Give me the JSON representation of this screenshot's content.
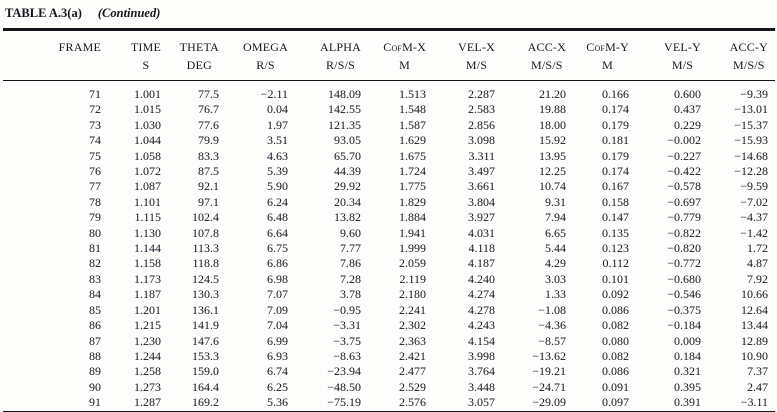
{
  "title": {
    "label": "TABLE A.3(a)",
    "continued": "(Continued)"
  },
  "columns": [
    {
      "key": "frame",
      "name": "FRAME",
      "unit": ""
    },
    {
      "key": "time",
      "name": "TIME",
      "unit": "S"
    },
    {
      "key": "theta",
      "name": "THETA",
      "unit": "DEG"
    },
    {
      "key": "omega",
      "name": "OMEGA",
      "unit": "R/S"
    },
    {
      "key": "alpha",
      "name": "ALPHA",
      "unit": "R/S/S"
    },
    {
      "key": "cofm_x",
      "name": "CofM-X",
      "unit": "M"
    },
    {
      "key": "vel_x",
      "name": "VEL-X",
      "unit": "M/S"
    },
    {
      "key": "acc_x",
      "name": "ACC-X",
      "unit": "M/S/S"
    },
    {
      "key": "cofm_y",
      "name": "CofM-Y",
      "unit": "M"
    },
    {
      "key": "vel_y",
      "name": "VEL-Y",
      "unit": "M/S"
    },
    {
      "key": "acc_y",
      "name": "ACC-Y",
      "unit": "M/S/S"
    }
  ],
  "rows": [
    [
      "71",
      "1.001",
      "77.5",
      "−2.11",
      "148.09",
      "1.513",
      "2.287",
      "21.20",
      "0.166",
      "0.600",
      "−9.39"
    ],
    [
      "72",
      "1.015",
      "76.7",
      "0.04",
      "142.55",
      "1.548",
      "2.583",
      "19.88",
      "0.174",
      "0.437",
      "−13.01"
    ],
    [
      "73",
      "1.030",
      "77.6",
      "1.97",
      "121.35",
      "1.587",
      "2.856",
      "18.00",
      "0.179",
      "0.229",
      "−15.37"
    ],
    [
      "74",
      "1.044",
      "79.9",
      "3.51",
      "93.05",
      "1.629",
      "3.098",
      "15.92",
      "0.181",
      "−0.002",
      "−15.93"
    ],
    [
      "75",
      "1.058",
      "83.3",
      "4.63",
      "65.70",
      "1.675",
      "3.311",
      "13.95",
      "0.179",
      "−0.227",
      "−14.68"
    ],
    [
      "76",
      "1.072",
      "87.5",
      "5.39",
      "44.39",
      "1.724",
      "3.497",
      "12.25",
      "0.174",
      "−0.422",
      "−12.28"
    ],
    [
      "77",
      "1.087",
      "92.1",
      "5.90",
      "29.92",
      "1.775",
      "3.661",
      "10.74",
      "0.167",
      "−0.578",
      "−9.59"
    ],
    [
      "78",
      "1.101",
      "97.1",
      "6.24",
      "20.34",
      "1.829",
      "3.804",
      "9.31",
      "0.158",
      "−0.697",
      "−7.02"
    ],
    [
      "79",
      "1.115",
      "102.4",
      "6.48",
      "13.82",
      "1.884",
      "3.927",
      "7.94",
      "0.147",
      "−0.779",
      "−4.37"
    ],
    [
      "80",
      "1.130",
      "107.8",
      "6.64",
      "9.60",
      "1.941",
      "4.031",
      "6.65",
      "0.135",
      "−0.822",
      "−1.42"
    ],
    [
      "81",
      "1.144",
      "113.3",
      "6.75",
      "7.77",
      "1.999",
      "4.118",
      "5.44",
      "0.123",
      "−0.820",
      "1.72"
    ],
    [
      "82",
      "1.158",
      "118.8",
      "6.86",
      "7.86",
      "2.059",
      "4.187",
      "4.29",
      "0.112",
      "−0.772",
      "4.87"
    ],
    [
      "83",
      "1.173",
      "124.5",
      "6.98",
      "7.28",
      "2.119",
      "4.240",
      "3.03",
      "0.101",
      "−0.680",
      "7.92"
    ],
    [
      "84",
      "1.187",
      "130.3",
      "7.07",
      "3.78",
      "2.180",
      "4.274",
      "1.33",
      "0.092",
      "−0.546",
      "10.66"
    ],
    [
      "85",
      "1.201",
      "136.1",
      "7.09",
      "−0.95",
      "2.241",
      "4.278",
      "−1.08",
      "0.086",
      "−0.375",
      "12.64"
    ],
    [
      "86",
      "1.215",
      "141.9",
      "7.04",
      "−3.31",
      "2.302",
      "4.243",
      "−4.36",
      "0.082",
      "−0.184",
      "13.44"
    ],
    [
      "87",
      "1.230",
      "147.6",
      "6.99",
      "−3.75",
      "2.363",
      "4.154",
      "−8.57",
      "0.080",
      "0.009",
      "12.89"
    ],
    [
      "88",
      "1.244",
      "153.3",
      "6.93",
      "−8.63",
      "2.421",
      "3.998",
      "−13.62",
      "0.082",
      "0.184",
      "10.90"
    ],
    [
      "89",
      "1.258",
      "159.0",
      "6.74",
      "−23.94",
      "2.477",
      "3.764",
      "−19.21",
      "0.086",
      "0.321",
      "7.37"
    ],
    [
      "90",
      "1.273",
      "164.4",
      "6.25",
      "−48.50",
      "2.529",
      "3.448",
      "−24.71",
      "0.091",
      "0.395",
      "2.47"
    ],
    [
      "91",
      "1.287",
      "169.2",
      "5.36",
      "−75.19",
      "2.576",
      "3.057",
      "−29.09",
      "0.097",
      "0.391",
      "−3.11"
    ]
  ]
}
